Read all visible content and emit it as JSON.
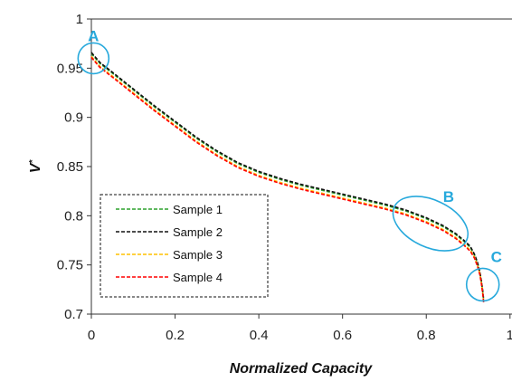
{
  "chart_data": {
    "type": "line",
    "xlabel": "Normalized Capacity",
    "ylabel": "V",
    "ylabel_superscript": "*",
    "xlim": [
      0,
      1
    ],
    "ylim": [
      0.7,
      1
    ],
    "x_ticks": [
      "0",
      "0.2",
      "0.4",
      "0.6",
      "0.8",
      "1"
    ],
    "y_ticks": [
      "0.7",
      "0.75",
      "0.8",
      "0.85",
      "0.9",
      "0.95",
      "1"
    ],
    "grid": false,
    "legend_position": "bottom-left",
    "series": [
      {
        "name": "Sample 1",
        "color": "#2ca02c",
        "line_style": "dashed",
        "x": [
          0.0,
          0.02,
          0.05,
          0.1,
          0.15,
          0.2,
          0.25,
          0.3,
          0.35,
          0.4,
          0.45,
          0.5,
          0.55,
          0.6,
          0.65,
          0.7,
          0.75,
          0.8,
          0.84,
          0.87,
          0.89,
          0.905,
          0.915,
          0.922,
          0.928,
          0.932,
          0.935,
          0.937
        ],
        "y": [
          0.965,
          0.955,
          0.945,
          0.928,
          0.911,
          0.895,
          0.879,
          0.865,
          0.853,
          0.844,
          0.837,
          0.831,
          0.826,
          0.821,
          0.816,
          0.811,
          0.805,
          0.797,
          0.789,
          0.781,
          0.774,
          0.768,
          0.76,
          0.752,
          0.742,
          0.732,
          0.722,
          0.714
        ]
      },
      {
        "name": "Sample 2",
        "color": "#111111",
        "line_style": "dashed",
        "x": [
          0.0,
          0.02,
          0.05,
          0.1,
          0.15,
          0.2,
          0.25,
          0.3,
          0.35,
          0.4,
          0.45,
          0.5,
          0.55,
          0.6,
          0.65,
          0.7,
          0.75,
          0.8,
          0.84,
          0.87,
          0.89,
          0.905,
          0.915,
          0.922,
          0.928,
          0.932,
          0.935,
          0.937
        ],
        "y": [
          0.966,
          0.956,
          0.946,
          0.929,
          0.912,
          0.896,
          0.88,
          0.866,
          0.854,
          0.845,
          0.838,
          0.832,
          0.827,
          0.822,
          0.817,
          0.812,
          0.806,
          0.798,
          0.79,
          0.782,
          0.775,
          0.769,
          0.761,
          0.753,
          0.743,
          0.733,
          0.723,
          0.715
        ]
      },
      {
        "name": "Sample 3",
        "color": "#ffc000",
        "line_style": "dashed",
        "x": [
          0.0,
          0.02,
          0.05,
          0.1,
          0.15,
          0.2,
          0.25,
          0.3,
          0.35,
          0.4,
          0.45,
          0.5,
          0.55,
          0.6,
          0.65,
          0.7,
          0.75,
          0.8,
          0.84,
          0.87,
          0.89,
          0.905,
          0.915,
          0.922,
          0.928,
          0.932,
          0.935,
          0.937
        ],
        "y": [
          0.962,
          0.952,
          0.942,
          0.925,
          0.908,
          0.892,
          0.876,
          0.862,
          0.85,
          0.841,
          0.834,
          0.828,
          0.823,
          0.818,
          0.813,
          0.808,
          0.802,
          0.794,
          0.786,
          0.778,
          0.771,
          0.765,
          0.758,
          0.75,
          0.741,
          0.731,
          0.721,
          0.713
        ]
      },
      {
        "name": "Sample 4",
        "color": "#ff0000",
        "line_style": "dashed",
        "x": [
          0.0,
          0.02,
          0.05,
          0.1,
          0.15,
          0.2,
          0.25,
          0.3,
          0.35,
          0.4,
          0.45,
          0.5,
          0.55,
          0.6,
          0.65,
          0.7,
          0.75,
          0.8,
          0.84,
          0.87,
          0.89,
          0.905,
          0.915,
          0.922,
          0.928,
          0.932,
          0.935,
          0.937
        ],
        "y": [
          0.961,
          0.951,
          0.941,
          0.924,
          0.907,
          0.891,
          0.875,
          0.861,
          0.849,
          0.84,
          0.833,
          0.827,
          0.822,
          0.817,
          0.812,
          0.807,
          0.801,
          0.793,
          0.785,
          0.777,
          0.77,
          0.764,
          0.757,
          0.749,
          0.74,
          0.73,
          0.72,
          0.712
        ]
      }
    ],
    "annotations": [
      {
        "label": "A",
        "color": "#27a9dc",
        "x": 0.005,
        "y": 0.96
      },
      {
        "label": "B",
        "color": "#27a9dc",
        "x": 0.81,
        "y": 0.792
      },
      {
        "label": "C",
        "color": "#27a9dc",
        "x": 0.935,
        "y": 0.73
      }
    ]
  }
}
